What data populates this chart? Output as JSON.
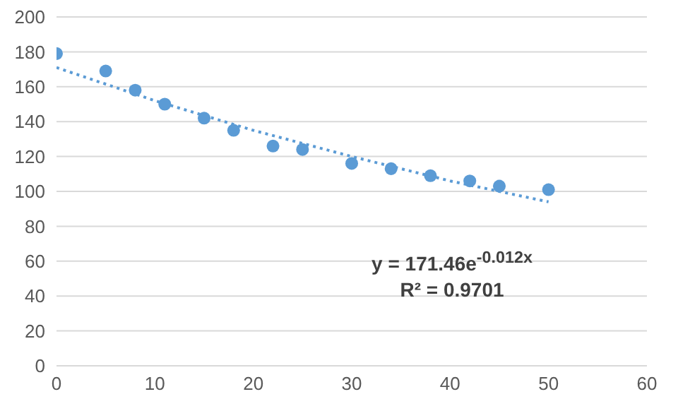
{
  "chart_data": {
    "type": "scatter",
    "xlim": [
      0,
      60
    ],
    "xticks": [
      0,
      10,
      20,
      30,
      40,
      50,
      60
    ],
    "ylim": [
      0,
      200
    ],
    "yticks": [
      0,
      20,
      40,
      60,
      80,
      100,
      120,
      140,
      160,
      180,
      200
    ],
    "grid": "y",
    "marker": "circle",
    "series": [
      {
        "color": "#5b9bd5",
        "x": [
          0,
          5,
          8,
          11,
          15,
          18,
          22,
          25,
          30,
          34,
          38,
          42,
          45,
          50
        ],
        "values": [
          179,
          169,
          158,
          150,
          142,
          135,
          126,
          124,
          116,
          113,
          109,
          106,
          103,
          101
        ]
      },
      {
        "type": "line",
        "color": "#5b9bd5",
        "line_style": "dotted",
        "marker": "none",
        "x": [
          0,
          10,
          20,
          30,
          40,
          50
        ],
        "values": [
          171,
          152,
          135,
          120,
          106,
          94
        ]
      }
    ],
    "annotations": [
      "y = 171.46e$^{-0.012x}$",
      "R² = 0.9701"
    ]
  }
}
